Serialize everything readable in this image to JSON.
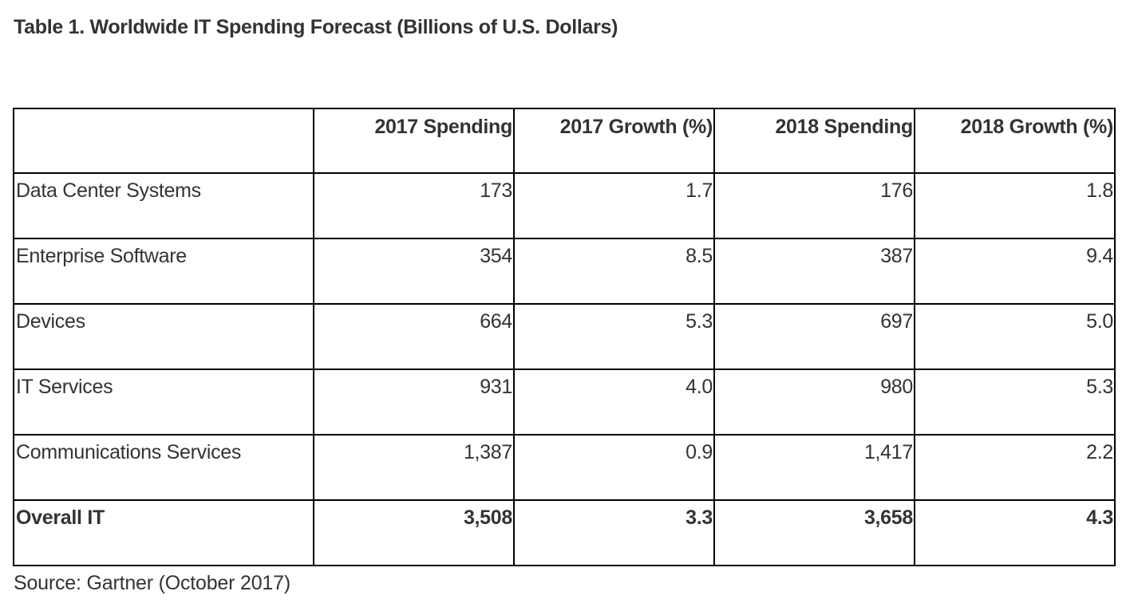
{
  "title": "Table 1. Worldwide IT Spending Forecast (Billions of U.S. Dollars)",
  "table": {
    "headers": [
      "",
      "2017 Spending",
      "2017 Growth (%)",
      "2018 Spending",
      "2018 Growth (%)"
    ],
    "rows": [
      {
        "label": "Data Center Systems",
        "spending_2017": "173",
        "growth_2017": "1.7",
        "spending_2018": "176",
        "growth_2018": "1.8"
      },
      {
        "label": "Enterprise Software",
        "spending_2017": "354",
        "growth_2017": "8.5",
        "spending_2018": "387",
        "growth_2018": "9.4"
      },
      {
        "label": "Devices",
        "spending_2017": "664",
        "growth_2017": "5.3",
        "spending_2018": "697",
        "growth_2018": "5.0"
      },
      {
        "label": "IT Services",
        "spending_2017": "931",
        "growth_2017": "4.0",
        "spending_2018": "980",
        "growth_2018": "5.3"
      },
      {
        "label": "Communications Services",
        "spending_2017": "1,387",
        "growth_2017": "0.9",
        "spending_2018": "1,417",
        "growth_2018": "2.2"
      }
    ],
    "total": {
      "label": "Overall IT",
      "spending_2017": "3,508",
      "growth_2017": "3.3",
      "spending_2018": "3,658",
      "growth_2018": "4.3"
    }
  },
  "source": "Source: Gartner (October 2017)"
}
